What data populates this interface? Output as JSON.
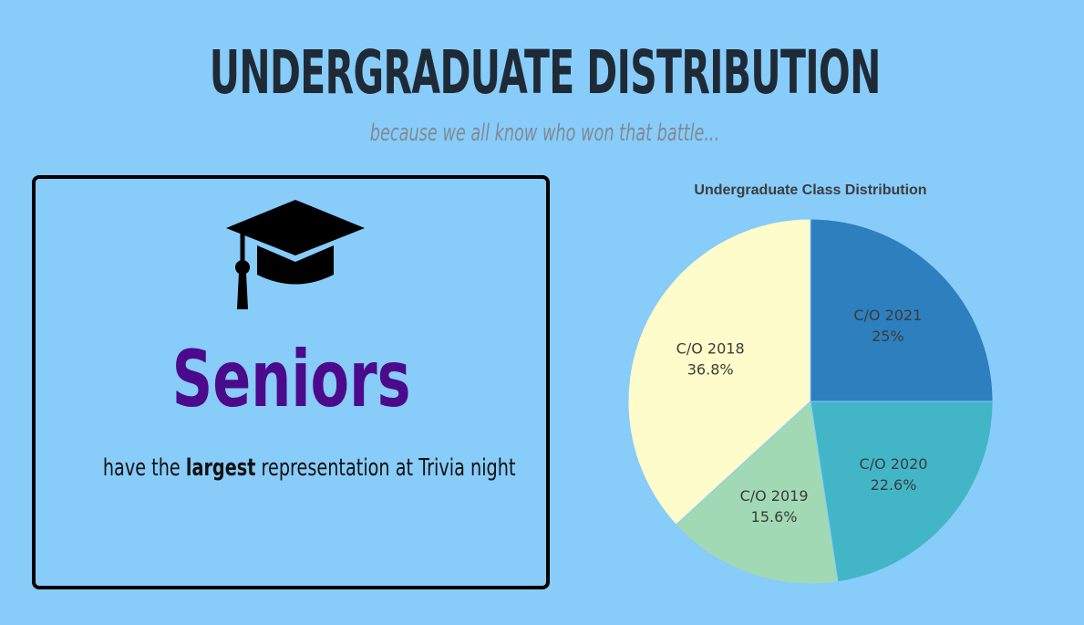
{
  "header": {
    "title": "UNDERGRADUATE DISTRIBUTION",
    "subtitle": "because we all know who won that battle..."
  },
  "card": {
    "icon": "graduation-cap-icon",
    "highlight": "Seniors",
    "caption_pre": "have the ",
    "caption_bold": "largest",
    "caption_post": " representation at Trivia night"
  },
  "colors": {
    "background": "#88ccf9",
    "highlight": "#4b0a8c"
  },
  "chart_data": {
    "type": "pie",
    "title": "Undergraduate Class Distribution",
    "slices": [
      {
        "label": "C/O 2021",
        "value": 25,
        "display": "25%",
        "color": "#2d7fbd"
      },
      {
        "label": "C/O 2020",
        "value": 22.6,
        "display": "22.6%",
        "color": "#42b6c7"
      },
      {
        "label": "C/O 2019",
        "value": 15.6,
        "display": "15.6%",
        "color": "#a1d9b5"
      },
      {
        "label": "C/O 2018",
        "value": 36.8,
        "display": "36.8%",
        "color": "#fefcca"
      }
    ],
    "legend": "none"
  }
}
